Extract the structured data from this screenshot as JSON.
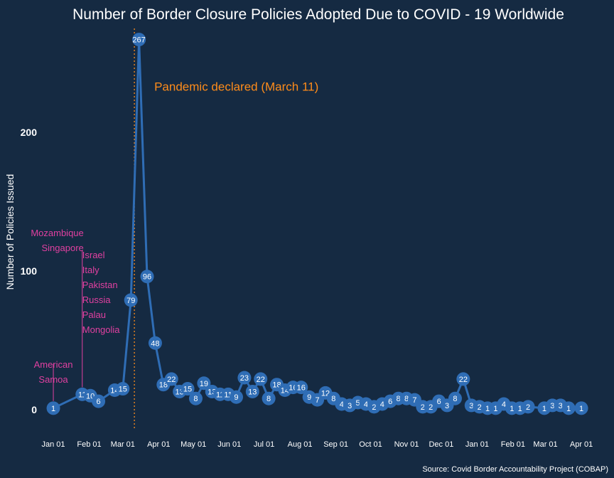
{
  "colors": {
    "background": "#152a42",
    "line": "#2f6db5",
    "point": "#2f6db5",
    "point_label": "#ffffff",
    "annotation": "#ff8c1a",
    "country_label": "#e040a0",
    "axis_text": "#ffffff"
  },
  "chart_data": {
    "type": "line",
    "title": "Number of Border Closure Policies Adopted Due to COVID - 19 Worldwide",
    "ylabel": "Number of Policies Issued",
    "xlabel": "",
    "source": "Source: Covid Border Accountability Project (COBAP)",
    "ylim": [
      -15,
      275
    ],
    "xlim": [
      "2019-12-24",
      "2021-04-12"
    ],
    "yticks": [
      0,
      100,
      200
    ],
    "xticks": [
      {
        "date": "2020-01-01",
        "label": "Jan 01"
      },
      {
        "date": "2020-02-01",
        "label": "Feb 01"
      },
      {
        "date": "2020-03-01",
        "label": "Mar 01"
      },
      {
        "date": "2020-04-01",
        "label": "Apr 01"
      },
      {
        "date": "2020-05-01",
        "label": "May 01"
      },
      {
        "date": "2020-06-01",
        "label": "Jun 01"
      },
      {
        "date": "2020-07-01",
        "label": "Jul 01"
      },
      {
        "date": "2020-08-01",
        "label": "Aug 01"
      },
      {
        "date": "2020-09-01",
        "label": "Sep 01"
      },
      {
        "date": "2020-10-01",
        "label": "Oct 01"
      },
      {
        "date": "2020-11-01",
        "label": "Nov 01"
      },
      {
        "date": "2020-12-01",
        "label": "Dec 01"
      },
      {
        "date": "2021-01-01",
        "label": "Jan 01"
      },
      {
        "date": "2021-02-01",
        "label": "Feb 01"
      },
      {
        "date": "2021-03-01",
        "label": "Mar 01"
      },
      {
        "date": "2021-04-01",
        "label": "Apr 01"
      }
    ],
    "annotation": {
      "date": "2020-03-11",
      "label": "Pandemic declared (March 11)"
    },
    "country_labels": [
      {
        "date": "2020-01-01",
        "value": 1,
        "lines": [
          "American",
          "Samoa"
        ]
      },
      {
        "date": "2020-01-26",
        "value": 11,
        "lines": [
          "Mozambique",
          "Singapore"
        ]
      },
      {
        "date": "2020-01-26",
        "value": 11,
        "lines": [
          "Israel",
          "Italy",
          "Pakistan",
          "Russia",
          "Palau",
          "Mongolia"
        ]
      }
    ],
    "series": [
      {
        "x": [
          "2020-01-01",
          "2020-01-26",
          "2020-02-02",
          "2020-02-09",
          "2020-02-23",
          "2020-03-01",
          "2020-03-08",
          "2020-03-15",
          "2020-03-22",
          "2020-03-29",
          "2020-04-05",
          "2020-04-12",
          "2020-04-19",
          "2020-04-26",
          "2020-05-03",
          "2020-05-10",
          "2020-05-17",
          "2020-05-24",
          "2020-05-31",
          "2020-06-07",
          "2020-06-14",
          "2020-06-21",
          "2020-06-28",
          "2020-07-05",
          "2020-07-12",
          "2020-07-19",
          "2020-07-26",
          "2020-08-02",
          "2020-08-09",
          "2020-08-16",
          "2020-08-23",
          "2020-08-30",
          "2020-09-06",
          "2020-09-13",
          "2020-09-20",
          "2020-09-27",
          "2020-10-04",
          "2020-10-11",
          "2020-10-18",
          "2020-10-25",
          "2020-11-01",
          "2020-11-08",
          "2020-11-15",
          "2020-11-22",
          "2020-11-29",
          "2020-12-06",
          "2020-12-13",
          "2020-12-20",
          "2020-12-27",
          "2021-01-03",
          "2021-01-10",
          "2021-01-17",
          "2021-01-24",
          "2021-01-31",
          "2021-02-07",
          "2021-02-14",
          "2021-02-28",
          "2021-03-07",
          "2021-03-14",
          "2021-03-21",
          "2021-04-01"
        ],
        "values": [
          1,
          11,
          10,
          6,
          14,
          15,
          79,
          267,
          96,
          48,
          18,
          22,
          13,
          15,
          8,
          19,
          13,
          11,
          11,
          9,
          23,
          13,
          22,
          8,
          18,
          14,
          16,
          16,
          9,
          7,
          12,
          8,
          4,
          3,
          5,
          4,
          2,
          4,
          6,
          8,
          8,
          7,
          2,
          2,
          6,
          3,
          8,
          22,
          3,
          2,
          1,
          1,
          4,
          1,
          1,
          2,
          1,
          3,
          3,
          1,
          1
        ]
      }
    ]
  }
}
